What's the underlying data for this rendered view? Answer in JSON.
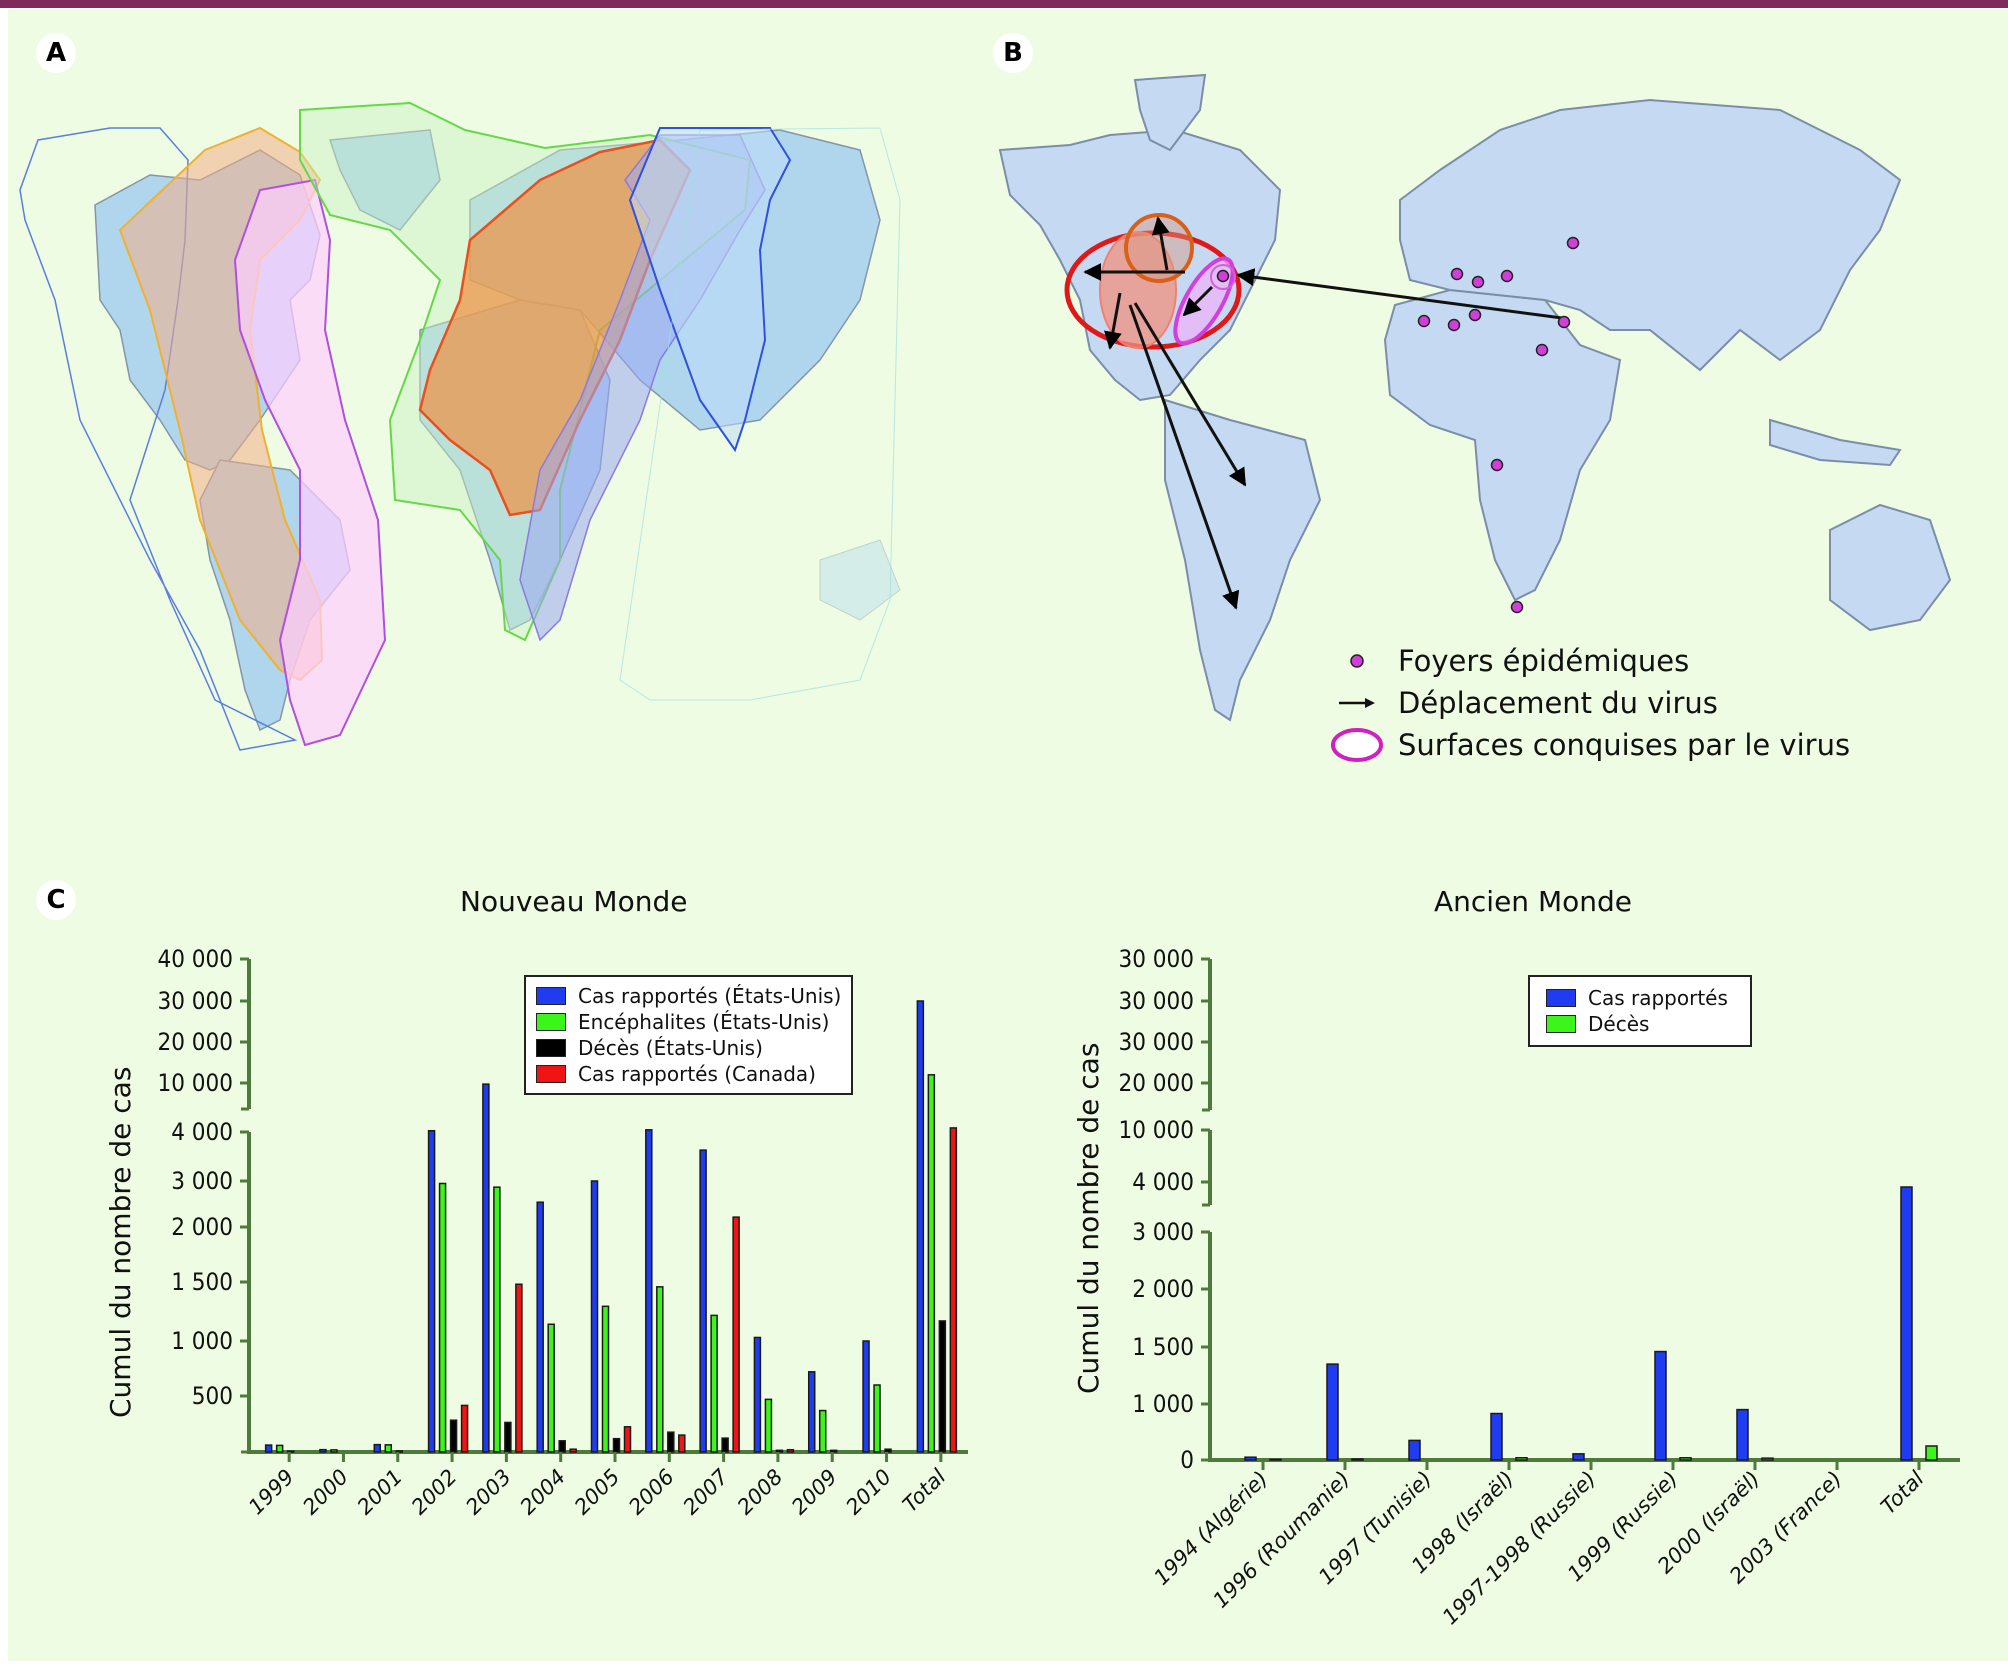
{
  "panels": {
    "a": {
      "label": "A"
    },
    "b": {
      "label": "B",
      "legend": [
        {
          "icon": "outbreak-dot-icon",
          "label": "Foyers épidémiques"
        },
        {
          "icon": "arrow-right-icon",
          "label": "Déplacement du virus"
        },
        {
          "icon": "ellipse-outline-icon",
          "label": "Surfaces conquises par le virus"
        }
      ]
    },
    "c": {
      "label": "C"
    }
  },
  "colors": {
    "top_bar": "#7e2a5a",
    "background": "#eefce3",
    "axis": "#4e7a3c",
    "blue": "#1f3cf0",
    "green": "#3cf51a",
    "black": "#000000",
    "red": "#f01414",
    "outbreak": "#d040d8",
    "surface": "#d020c0",
    "map_land": "#c5d9f3"
  },
  "chart_data": [
    {
      "type": "bar",
      "title": "Nouveau Monde",
      "xlabel": "",
      "ylabel": "Cumul du nombre de cas",
      "y_axis_broken": true,
      "yticks": [
        500,
        1000,
        1500,
        2000,
        3000,
        4000,
        10000,
        20000,
        30000,
        40000
      ],
      "ytick_labels": [
        "500",
        "1 000",
        "1 500",
        "2 000",
        "3 000",
        "4 000",
        "10 000",
        "20 000",
        "30 000",
        "40 000"
      ],
      "categories": [
        "1999",
        "2000",
        "2001",
        "2002",
        "2003",
        "2004",
        "2005",
        "2006",
        "2007",
        "2008",
        "2009",
        "2010",
        "Total"
      ],
      "legend_position": "top-right",
      "series": [
        {
          "name": "Cas rapportés (États-Unis)",
          "color": "#1f3cf0",
          "values": [
            62,
            21,
            66,
            4156,
            9862,
            2539,
            3000,
            4269,
            3630,
            1030,
            720,
            1000,
            30000
          ]
        },
        {
          "name": "Encéphalites (États-Unis)",
          "color": "#3cf51a",
          "values": [
            59,
            19,
            64,
            2946,
            2866,
            1142,
            1294,
            1459,
            1217,
            470,
            370,
            600,
            12000
          ]
        },
        {
          "name": "Décès (États-Unis)",
          "color": "#000000",
          "values": [
            7,
            2,
            9,
            284,
            264,
            100,
            119,
            177,
            124,
            15,
            15,
            25,
            1170
          ]
        },
        {
          "name": "Cas rapportés (Canada)",
          "color": "#f01414",
          "values": [
            0,
            0,
            0,
            416,
            1481,
            25,
            225,
            151,
            2215,
            20,
            0,
            0,
            4500
          ]
        }
      ]
    },
    {
      "type": "bar",
      "title": "Ancien Monde",
      "xlabel": "",
      "ylabel": "Cumul du nombre de cas",
      "y_axis_broken": true,
      "yticks": [
        0,
        1000,
        1500,
        2000,
        3000,
        4000,
        10000,
        20000,
        30000,
        30000,
        30000
      ],
      "ytick_labels": [
        "0",
        "1 000",
        "1 500",
        "2 000",
        "3 000",
        "4 000",
        "10 000",
        "20 000",
        "30 000",
        "30 000",
        "30 000"
      ],
      "categories": [
        "1994 (Algérie)",
        "1996 (Roumanie)",
        "1997 (Tunisie)",
        "1998 (Israël)",
        "1997-1998 (Russie)",
        "1999 (Russie)",
        "2000 (Israël)",
        "2003 (France)",
        "Total"
      ],
      "legend_position": "top-right",
      "series": [
        {
          "name": "Cas rapportés",
          "color": "#1f3cf0",
          "values": [
            50,
            1350,
            350,
            830,
            110,
            1460,
            900,
            7,
            3900
          ]
        },
        {
          "name": "Décès",
          "color": "#3cf51a",
          "values": [
            10,
            17,
            0,
            40,
            0,
            40,
            33,
            0,
            250
          ]
        }
      ]
    }
  ]
}
